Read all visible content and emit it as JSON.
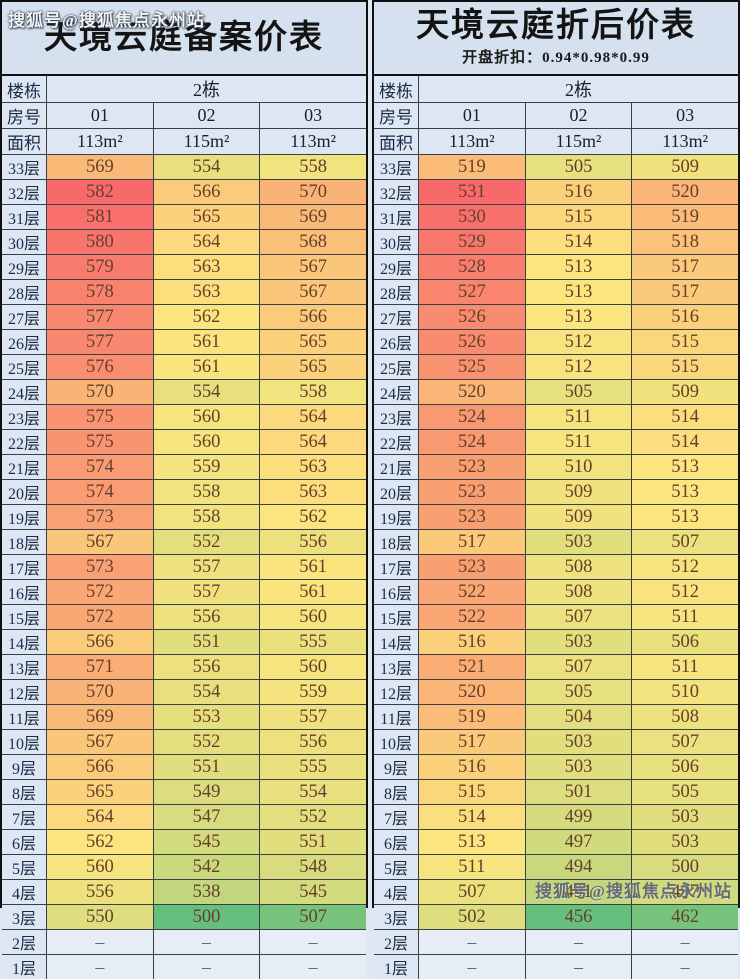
{
  "watermark_top": "搜狐号@搜狐焦点永州站",
  "watermark_bottom": "搜狐号@搜狐焦点永州站",
  "empty_placeholder": "–",
  "heatmap": {
    "min_color": "#66BF7C",
    "mid_color": "#FBE57E",
    "max_color": "#F8696B",
    "label_bg": "#dde7f3",
    "empty_bg": "#e6edf6"
  },
  "chart_data": [
    {
      "type": "table",
      "title": "天境云庭备案价表",
      "subtitle": "",
      "building_label": "楼栋",
      "building_value": "2栋",
      "room_label": "房号",
      "rooms": [
        "01",
        "02",
        "03"
      ],
      "area_label": "面积",
      "areas": [
        "113m²",
        "115m²",
        "113m²"
      ],
      "floor_suffix": "层",
      "floors": [
        33,
        32,
        31,
        30,
        29,
        28,
        27,
        26,
        25,
        24,
        23,
        22,
        21,
        20,
        19,
        18,
        17,
        16,
        15,
        14,
        13,
        12,
        11,
        10,
        9,
        8,
        7,
        6,
        5,
        4,
        3,
        2,
        1
      ],
      "values": [
        [
          569,
          554,
          558
        ],
        [
          582,
          566,
          570
        ],
        [
          581,
          565,
          569
        ],
        [
          580,
          564,
          568
        ],
        [
          579,
          563,
          567
        ],
        [
          578,
          563,
          567
        ],
        [
          577,
          562,
          566
        ],
        [
          577,
          561,
          565
        ],
        [
          576,
          561,
          565
        ],
        [
          570,
          554,
          558
        ],
        [
          575,
          560,
          564
        ],
        [
          575,
          560,
          564
        ],
        [
          574,
          559,
          563
        ],
        [
          574,
          558,
          563
        ],
        [
          573,
          558,
          562
        ],
        [
          567,
          552,
          556
        ],
        [
          573,
          557,
          561
        ],
        [
          572,
          557,
          561
        ],
        [
          572,
          556,
          560
        ],
        [
          566,
          551,
          555
        ],
        [
          571,
          556,
          560
        ],
        [
          570,
          554,
          559
        ],
        [
          569,
          553,
          557
        ],
        [
          567,
          552,
          556
        ],
        [
          566,
          551,
          555
        ],
        [
          565,
          549,
          554
        ],
        [
          564,
          547,
          552
        ],
        [
          562,
          545,
          551
        ],
        [
          560,
          542,
          548
        ],
        [
          556,
          538,
          545
        ],
        [
          550,
          500,
          507
        ],
        [
          "–",
          "–",
          "–"
        ],
        [
          "–",
          "–",
          "–"
        ]
      ]
    },
    {
      "type": "table",
      "title": "天境云庭折后价表",
      "subtitle": "开盘折扣：0.94*0.98*0.99",
      "building_label": "楼栋",
      "building_value": "2栋",
      "room_label": "房号",
      "rooms": [
        "01",
        "02",
        "03"
      ],
      "area_label": "面积",
      "areas": [
        "113m²",
        "115m²",
        "113m²"
      ],
      "floor_suffix": "层",
      "floors": [
        33,
        32,
        31,
        30,
        29,
        28,
        27,
        26,
        25,
        24,
        23,
        22,
        21,
        20,
        19,
        18,
        17,
        16,
        15,
        14,
        13,
        12,
        11,
        10,
        9,
        8,
        7,
        6,
        5,
        4,
        3,
        2,
        1
      ],
      "values": [
        [
          519,
          505,
          509
        ],
        [
          531,
          516,
          520
        ],
        [
          530,
          515,
          519
        ],
        [
          529,
          514,
          518
        ],
        [
          528,
          513,
          517
        ],
        [
          527,
          513,
          517
        ],
        [
          526,
          513,
          516
        ],
        [
          526,
          512,
          515
        ],
        [
          525,
          512,
          515
        ],
        [
          520,
          505,
          509
        ],
        [
          524,
          511,
          514
        ],
        [
          524,
          511,
          514
        ],
        [
          523,
          510,
          513
        ],
        [
          523,
          509,
          513
        ],
        [
          523,
          509,
          513
        ],
        [
          517,
          503,
          507
        ],
        [
          523,
          508,
          512
        ],
        [
          522,
          508,
          512
        ],
        [
          522,
          507,
          511
        ],
        [
          516,
          503,
          506
        ],
        [
          521,
          507,
          511
        ],
        [
          520,
          505,
          510
        ],
        [
          519,
          504,
          508
        ],
        [
          517,
          503,
          507
        ],
        [
          516,
          503,
          506
        ],
        [
          515,
          501,
          505
        ],
        [
          514,
          499,
          503
        ],
        [
          513,
          497,
          503
        ],
        [
          511,
          494,
          500
        ],
        [
          507,
          491,
          497
        ],
        [
          502,
          456,
          462
        ],
        [
          "–",
          "–",
          "–"
        ],
        [
          "–",
          "–",
          "–"
        ]
      ]
    }
  ]
}
